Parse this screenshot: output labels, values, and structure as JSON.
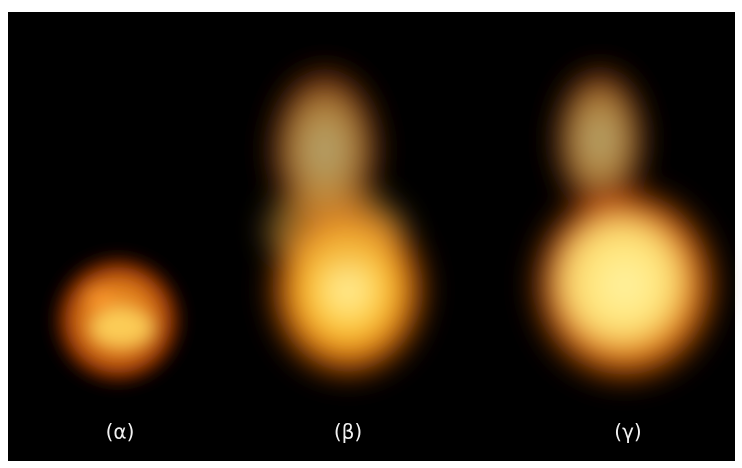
{
  "labels": [
    "(α)",
    "(β)",
    "(γ)"
  ]
}
